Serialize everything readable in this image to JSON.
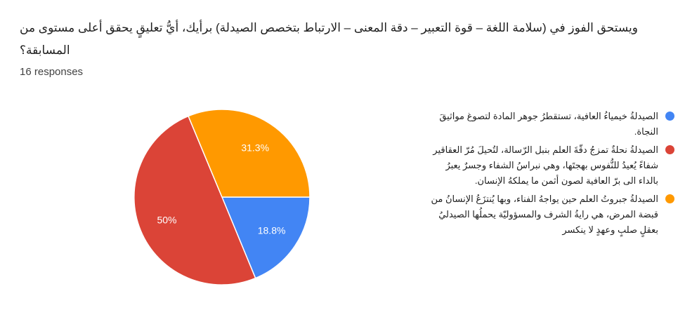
{
  "header": {
    "title": "ويستحق الفوز في (سلامة اللغة – قوة التعبير – دقة المعنى – الارتباط بتخصص الصيدلة) برأيك، أيُّ تعليقٍ يحقق أعلى مستوى من المسابقة؟",
    "responses": "16 responses"
  },
  "colors": {
    "background": "#ffffff",
    "title_text": "#212121",
    "responses_text": "#424242",
    "legend_text": "#212121",
    "slice_label_text": "#ffffff",
    "slice_border": "#ffffff"
  },
  "chart_data": {
    "type": "pie",
    "title": "",
    "total_responses": 16,
    "legend_position": "right",
    "start_angle_clockwise_from_top": 90,
    "categories": [
      "الصيدلةُ خيمياءُ العافية، تستقطرُ جوهر المادة لتصوغ مواثيقَ النجاة.",
      "الصيدلةُ نحلةٌ تمزجُ دقّةَ العلم بنبل الرّسالة، لتُحيلَ مُرّ العقاقير شفاءً يُعيدُ للنُّفوس بهجتَها، وهي نبراسُ الشفاء وجسرٌ يعبرُ بالداء الى برّ العافية لصون أثمن ما يملكهُ الإنسان.",
      "الصيدلةُ جبروتُ العلم حين يواجهُ الفناء، وبها يُنتزَعُ الإنسانُ من قبضة المرض، هي رايةُ الشرف والمسؤوليّة يحملُها الصيدليُ بعقلٍ صلبٍ وعهدٍ لا ينكسر"
    ],
    "values": [
      18.8,
      50,
      31.3
    ],
    "slice_labels": [
      "18.8%",
      "50%",
      "31.3%"
    ],
    "colors": [
      "#4285F4",
      "#DB4437",
      "#FF9900"
    ]
  }
}
